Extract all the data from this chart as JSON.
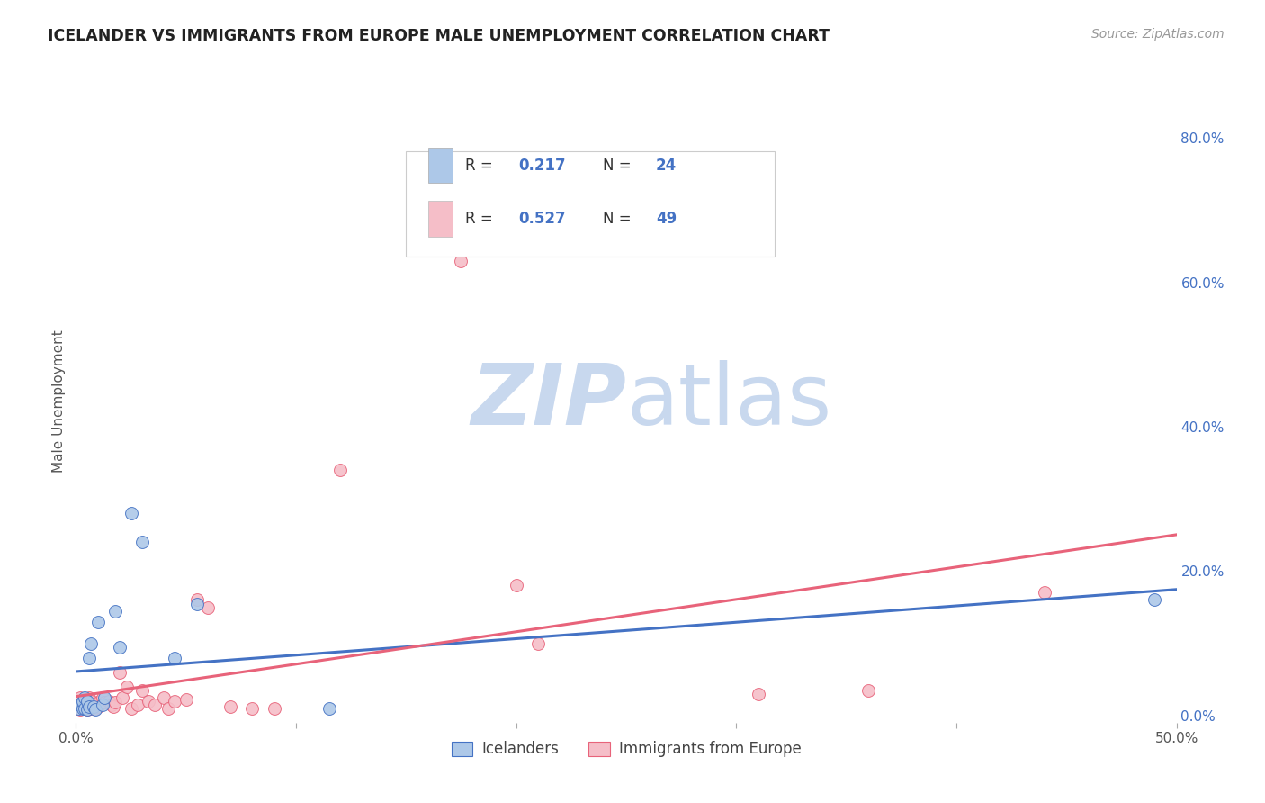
{
  "title": "ICELANDER VS IMMIGRANTS FROM EUROPE MALE UNEMPLOYMENT CORRELATION CHART",
  "source": "Source: ZipAtlas.com",
  "ylabel": "Male Unemployment",
  "xlim": [
    0,
    0.5
  ],
  "ylim": [
    -0.01,
    0.88
  ],
  "xticks": [
    0.0,
    0.1,
    0.2,
    0.3,
    0.4,
    0.5
  ],
  "xticklabels": [
    "0.0%",
    "",
    "",
    "",
    "",
    "50.0%"
  ],
  "yticks_right": [
    0.0,
    0.2,
    0.4,
    0.6,
    0.8
  ],
  "yticklabels_right": [
    "0.0%",
    "20.0%",
    "40.0%",
    "60.0%",
    "80.0%"
  ],
  "grid_color": "#dddddd",
  "background_color": "#ffffff",
  "icelanders_color": "#adc8e8",
  "immigrants_color": "#f5bec8",
  "icelanders_line_color": "#4472c4",
  "immigrants_line_color": "#e8637a",
  "icelanders_R": 0.217,
  "icelanders_N": 24,
  "immigrants_R": 0.527,
  "immigrants_N": 49,
  "legend_label_color": "#4472c4",
  "icelanders_x": [
    0.001,
    0.002,
    0.003,
    0.003,
    0.004,
    0.004,
    0.005,
    0.005,
    0.006,
    0.006,
    0.007,
    0.008,
    0.009,
    0.01,
    0.012,
    0.013,
    0.018,
    0.02,
    0.025,
    0.03,
    0.045,
    0.055,
    0.115,
    0.49
  ],
  "icelanders_y": [
    0.01,
    0.015,
    0.01,
    0.02,
    0.01,
    0.025,
    0.008,
    0.02,
    0.012,
    0.08,
    0.1,
    0.012,
    0.008,
    0.13,
    0.015,
    0.025,
    0.145,
    0.095,
    0.28,
    0.24,
    0.08,
    0.155,
    0.01,
    0.16
  ],
  "immigrants_x": [
    0.001,
    0.001,
    0.002,
    0.002,
    0.002,
    0.003,
    0.003,
    0.004,
    0.004,
    0.005,
    0.005,
    0.006,
    0.006,
    0.007,
    0.007,
    0.008,
    0.009,
    0.01,
    0.011,
    0.012,
    0.013,
    0.015,
    0.016,
    0.017,
    0.018,
    0.02,
    0.021,
    0.023,
    0.025,
    0.028,
    0.03,
    0.033,
    0.036,
    0.04,
    0.042,
    0.045,
    0.05,
    0.055,
    0.06,
    0.07,
    0.08,
    0.09,
    0.12,
    0.175,
    0.2,
    0.21,
    0.31,
    0.36,
    0.44
  ],
  "immigrants_y": [
    0.01,
    0.02,
    0.008,
    0.015,
    0.025,
    0.012,
    0.018,
    0.01,
    0.022,
    0.008,
    0.018,
    0.012,
    0.025,
    0.01,
    0.02,
    0.015,
    0.01,
    0.012,
    0.02,
    0.025,
    0.018,
    0.02,
    0.015,
    0.012,
    0.018,
    0.06,
    0.025,
    0.04,
    0.01,
    0.015,
    0.035,
    0.02,
    0.015,
    0.025,
    0.01,
    0.02,
    0.022,
    0.16,
    0.15,
    0.012,
    0.01,
    0.01,
    0.34,
    0.63,
    0.18,
    0.1,
    0.03,
    0.035,
    0.17
  ],
  "watermark_zip": "ZIP",
  "watermark_atlas": "atlas",
  "watermark_color_zip": "#c8d8ee",
  "watermark_color_atlas": "#c8d8ee",
  "bottom_legend_items": [
    "Icelanders",
    "Immigrants from Europe"
  ],
  "bottom_legend_colors": [
    "#adc8e8",
    "#f5bec8"
  ],
  "bottom_legend_edge_colors": [
    "#4472c4",
    "#e8637a"
  ]
}
